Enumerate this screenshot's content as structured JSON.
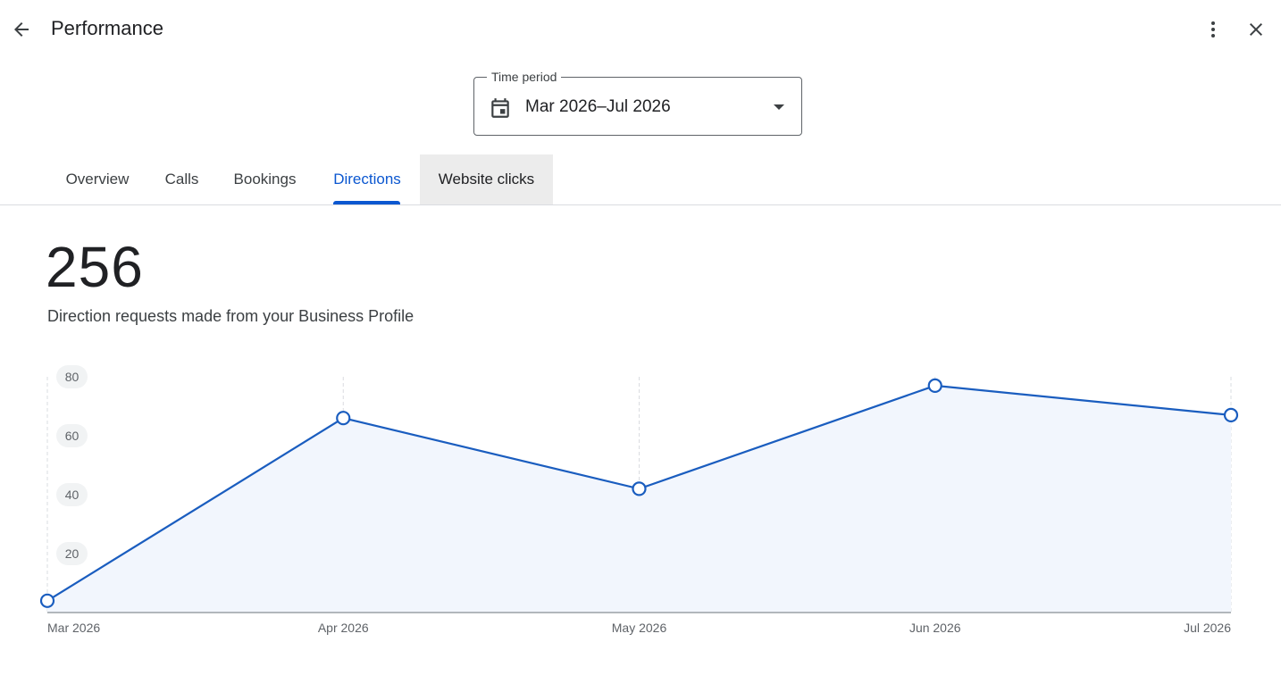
{
  "header": {
    "title": "Performance",
    "back_icon": "arrow-back-icon",
    "more_icon": "more-vert-icon",
    "close_icon": "close-icon"
  },
  "time_period": {
    "label": "Time period",
    "value": "Mar 2026–Jul 2026",
    "icon": "calendar-icon"
  },
  "tabs": [
    {
      "label": "Overview",
      "state": "default"
    },
    {
      "label": "Calls",
      "state": "default"
    },
    {
      "label": "Bookings",
      "state": "default"
    },
    {
      "label": "Directions",
      "state": "selected"
    },
    {
      "label": "Website clicks",
      "state": "hovered"
    }
  ],
  "summary": {
    "total": "256",
    "description": "Direction requests made from your Business Profile"
  },
  "colors": {
    "accent": "#0b57d0",
    "line": "#1a5dbf",
    "area_fill": "#f2f6fd",
    "hover_tab": "#ececec"
  },
  "chart_data": {
    "type": "area",
    "categories": [
      "Mar 2026",
      "Apr 2026",
      "May 2026",
      "Jun 2026",
      "Jul 2026"
    ],
    "values": [
      4,
      66,
      42,
      77,
      67
    ],
    "yticks": [
      20,
      40,
      60,
      80
    ],
    "ylim": [
      0,
      80
    ],
    "grid": "vertical dashed",
    "legend": "none"
  }
}
